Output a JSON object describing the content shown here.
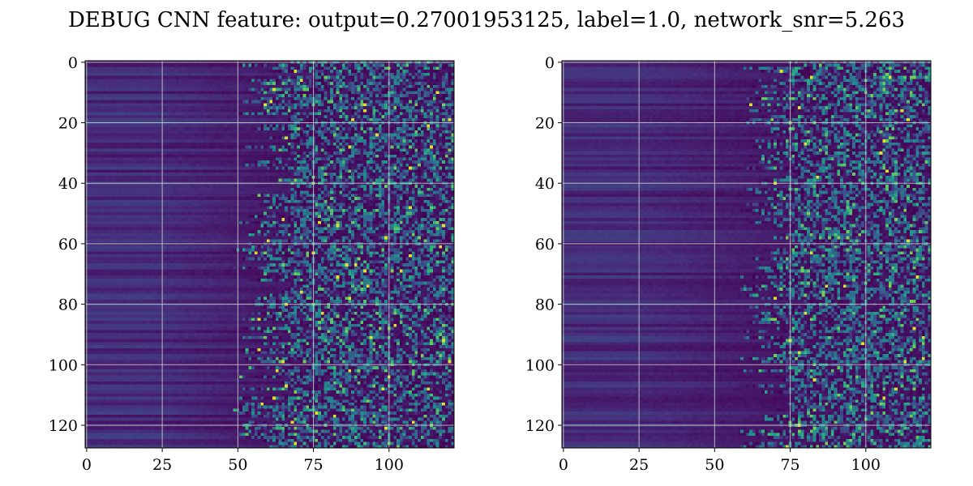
{
  "chart_data": {
    "type": "heatmap",
    "title": "DEBUG CNN feature: output=0.27001953125, label=1.0, network_snr=5.263",
    "colormap": "viridis",
    "grid": true,
    "panels": [
      {
        "name": "",
        "rows": 128,
        "cols": 122,
        "xlim": [
          -0.5,
          121.5
        ],
        "ylim": [
          127.5,
          -0.5
        ],
        "xticks": [
          0,
          25,
          50,
          75,
          100
        ],
        "yticks": [
          0,
          20,
          40,
          60,
          80,
          100,
          120
        ],
        "xlabel": "",
        "ylabel": ""
      },
      {
        "name": "",
        "rows": 128,
        "cols": 122,
        "xlim": [
          -0.5,
          121.5
        ],
        "ylim": [
          127.5,
          -0.5
        ],
        "xticks": [
          0,
          25,
          50,
          75,
          100
        ],
        "yticks": [
          0,
          20,
          40,
          60,
          80,
          100,
          120
        ],
        "xlabel": "",
        "ylabel": ""
      }
    ]
  }
}
